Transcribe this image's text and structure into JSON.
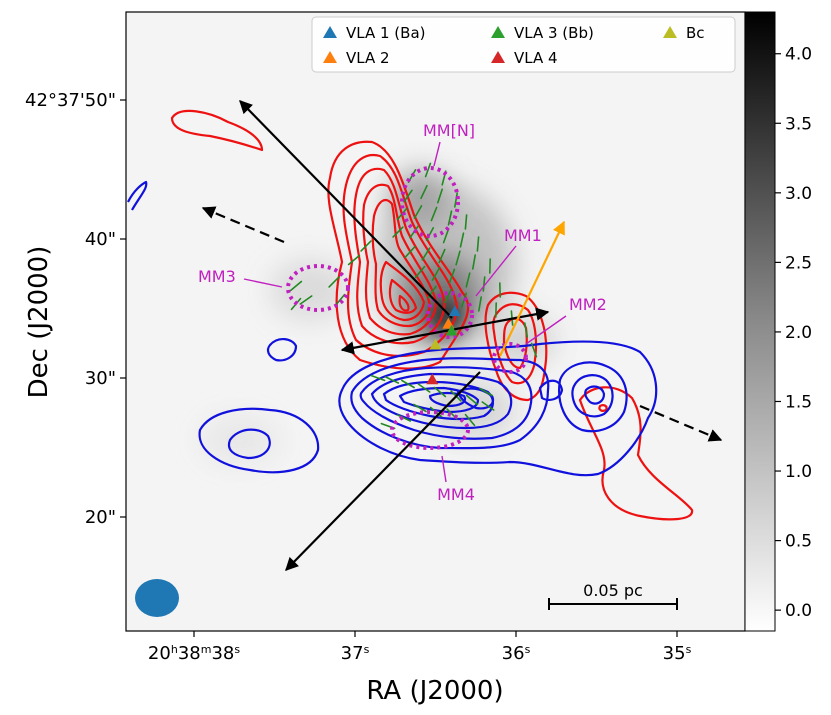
{
  "chart_data": {
    "type": "scatter",
    "xlabel": "RA (J2000)",
    "ylabel": "Dec (J2000)",
    "x_ticks": [
      {
        "value": 38,
        "label": "20h38m38s",
        "html": "20<tspan baseline-shift=\"super\" font-size=\"11\">h</tspan>38<tspan baseline-shift=\"super\" font-size=\"11\">m</tspan>38<tspan baseline-shift=\"super\" font-size=\"11\">s</tspan>"
      },
      {
        "value": 37,
        "label": "37s"
      },
      {
        "value": 36,
        "label": "36s"
      },
      {
        "value": 35,
        "label": "35s"
      }
    ],
    "y_ticks": [
      {
        "value": 50,
        "label": "42°37'50\""
      },
      {
        "value": 40,
        "label": "40\""
      },
      {
        "value": 30,
        "label": "30\""
      },
      {
        "value": 20,
        "label": "20\""
      }
    ],
    "colorbar": {
      "ticks": [
        "0.0",
        "0.5",
        "1.0",
        "1.5",
        "2.0",
        "2.5",
        "3.0",
        "3.5",
        "4.0"
      ],
      "range": [
        -0.15,
        4.3
      ]
    },
    "legend": {
      "placement": "top-center",
      "entries": [
        {
          "label": "VLA 1 (Ba)",
          "color": "#1f77b4"
        },
        {
          "label": "VLA 2",
          "color": "#ff7f0e"
        },
        {
          "label": "VLA 3 (Bb)",
          "color": "#2ca02c"
        },
        {
          "label": "VLA 4",
          "color": "#d62728"
        },
        {
          "label": "Bc",
          "color": "#bcbd22"
        }
      ]
    },
    "sources": [
      {
        "name": "VLA 1 (Ba)",
        "ra_s": 36.38,
        "dec_arcsec": 34.8,
        "color": "#1f77b4"
      },
      {
        "name": "VLA 2",
        "ra_s": 36.42,
        "dec_arcsec": 33.9,
        "color": "#ff7f0e"
      },
      {
        "name": "VLA 3 (Bb)",
        "ra_s": 36.4,
        "dec_arcsec": 33.4,
        "color": "#2ca02c"
      },
      {
        "name": "VLA 4",
        "ra_s": 36.52,
        "dec_arcsec": 29.9,
        "color": "#d62728"
      },
      {
        "name": "Bc",
        "ra_s": 36.5,
        "dec_arcsec": 32.4,
        "color": "#bcbd22"
      }
    ],
    "cores": [
      {
        "name": "MM[N]",
        "ra_s": 36.5,
        "dec_arcsec": 43.0
      },
      {
        "name": "MM1",
        "ra_s": 36.3,
        "dec_arcsec": 38.5
      },
      {
        "name": "MM2",
        "ra_s": 36.05,
        "dec_arcsec": 33.0
      },
      {
        "name": "MM3",
        "ra_s": 37.25,
        "dec_arcsec": 37.0
      },
      {
        "name": "MM4",
        "ra_s": 36.4,
        "dec_arcsec": 26.0
      }
    ],
    "scalebar_label": "0.05 pc",
    "grid": false,
    "colors": {
      "red_contours": "#ee1111",
      "blue_contours": "#1111dd",
      "core_outline": "#c020c0",
      "polarization": "#228822",
      "outflow_arrows": "#000000",
      "vla2_arrow": "#ffa500",
      "beam": "#1f77b4"
    }
  }
}
